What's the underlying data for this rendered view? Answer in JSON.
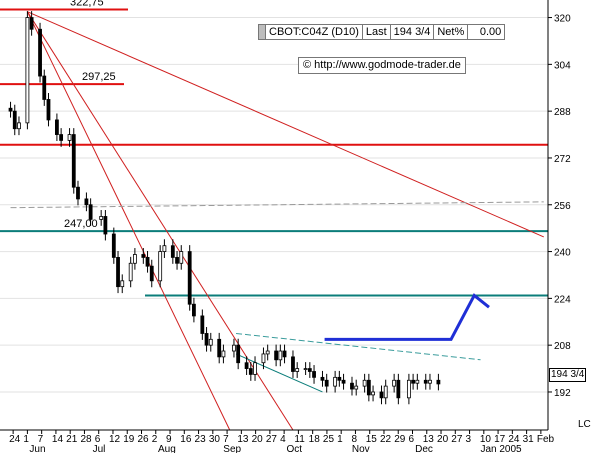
{
  "header": {
    "symbol": "CBOT:C04Z (D10)",
    "last_label": "Last",
    "last_value": "194 3/4",
    "netpct_label": "Net%",
    "netpct_value": "0.00",
    "copyright": "© http://www.godmode-trader.de"
  },
  "price_tag": "194 3/4",
  "corner_label": "LC",
  "chart_data": {
    "type": "candlestick",
    "title": "",
    "y_axis": {
      "side": "right",
      "ylim": [
        179,
        326
      ],
      "ticks": [
        192,
        208,
        224,
        240,
        256,
        272,
        288,
        304,
        320
      ]
    },
    "x_axis": {
      "day_ticks": [
        "24",
        "1",
        "7",
        "14",
        "21",
        "28",
        "6",
        "12",
        "19",
        "26",
        "2",
        "9",
        "16",
        "23",
        "30",
        "7",
        "13",
        "20",
        "27",
        "4",
        "11",
        "18",
        "25",
        "1",
        "8",
        "15",
        "22",
        "29",
        "6",
        "13",
        "20",
        "27",
        "3",
        "10",
        "17",
        "24",
        "31",
        "Feb"
      ],
      "month_labels": [
        "Jun",
        "Jul",
        "Aug",
        "Sep",
        "Oct",
        "Nov",
        "Dec",
        "Jan 2005"
      ]
    },
    "horizontal_levels": [
      {
        "value": 322.75,
        "label": "322,75",
        "color": "#e01010"
      },
      {
        "value": 297.25,
        "label": "297,25",
        "color": "#e01010"
      },
      {
        "value": 276.5,
        "label": "",
        "color": "#e01010"
      },
      {
        "value": 247.0,
        "label": "247,00",
        "color": "#0b7d7a"
      },
      {
        "value": 225.0,
        "label": "",
        "color": "#0b7d7a"
      }
    ],
    "trendlines": [
      {
        "color": "#d02020",
        "points": [
          [
            "2004-06-01",
            322
          ],
          [
            "2005-02-01",
            245
          ]
        ]
      },
      {
        "color": "#d02020",
        "points": [
          [
            "2004-06-01",
            322
          ],
          [
            "2004-10-05",
            179
          ]
        ]
      },
      {
        "color": "#d02020",
        "points": [
          [
            "2004-06-01",
            322
          ],
          [
            "2004-09-05",
            179
          ]
        ]
      },
      {
        "color": "#0b7d7a",
        "points": [
          [
            "2004-09-08",
            205
          ],
          [
            "2004-10-19",
            192
          ]
        ]
      },
      {
        "color": "#9a9a9a",
        "points": [
          [
            "2004-05-24",
            255
          ],
          [
            "2005-02-01",
            257
          ]
        ]
      },
      {
        "color": "#3a9c9c",
        "points": [
          [
            "2004-09-08",
            212
          ],
          [
            "2005-01-02",
            203
          ]
        ]
      }
    ],
    "projection": {
      "color": "#1f2fd6",
      "points": [
        [
          "2004-10-20",
          210
        ],
        [
          "2004-12-19",
          210
        ],
        [
          "2004-12-30",
          225
        ],
        [
          "2005-01-06",
          221
        ]
      ]
    },
    "price_bars": {
      "dates": [
        "2004-05-24",
        "2004-05-26",
        "2004-05-28",
        "2004-06-01",
        "2004-06-03",
        "2004-06-07",
        "2004-06-09",
        "2004-06-11",
        "2004-06-15",
        "2004-06-17",
        "2004-06-21",
        "2004-06-23",
        "2004-06-25",
        "2004-06-29",
        "2004-07-01",
        "2004-07-06",
        "2004-07-08",
        "2004-07-12",
        "2004-07-14",
        "2004-07-16",
        "2004-07-20",
        "2004-07-22",
        "2004-07-26",
        "2004-07-28",
        "2004-07-30",
        "2004-08-03",
        "2004-08-05",
        "2004-08-09",
        "2004-08-11",
        "2004-08-13",
        "2004-08-17",
        "2004-08-19",
        "2004-08-23",
        "2004-08-25",
        "2004-08-27",
        "2004-08-31",
        "2004-09-02",
        "2004-09-07",
        "2004-09-09",
        "2004-09-13",
        "2004-09-15",
        "2004-09-17",
        "2004-09-21",
        "2004-09-23",
        "2004-09-27",
        "2004-09-29",
        "2004-10-01",
        "2004-10-05",
        "2004-10-07",
        "2004-10-11",
        "2004-10-13",
        "2004-10-15",
        "2004-10-19",
        "2004-10-21",
        "2004-10-25",
        "2004-10-27",
        "2004-10-29",
        "2004-11-02",
        "2004-11-04",
        "2004-11-08",
        "2004-11-10",
        "2004-11-12",
        "2004-11-16",
        "2004-11-18",
        "2004-11-22",
        "2004-11-24",
        "2004-11-29",
        "2004-12-01",
        "2004-12-03",
        "2004-12-07",
        "2004-12-09",
        "2004-12-13"
      ],
      "values": [
        288,
        282,
        284,
        320,
        316,
        300,
        292,
        285,
        280,
        278,
        280,
        262,
        258,
        256,
        251,
        252,
        246,
        238,
        228,
        230,
        236,
        239,
        238,
        235,
        230,
        240,
        242,
        238,
        236,
        240,
        222,
        218,
        212,
        208,
        210,
        204,
        206,
        208,
        202,
        200,
        198,
        202,
        205,
        206,
        203,
        206,
        204,
        199,
        200,
        200,
        199,
        197,
        196,
        194,
        197,
        196,
        195,
        193,
        194,
        196,
        191,
        192,
        190,
        194,
        196,
        190,
        196,
        195,
        196,
        195,
        196,
        194.75
      ]
    }
  }
}
